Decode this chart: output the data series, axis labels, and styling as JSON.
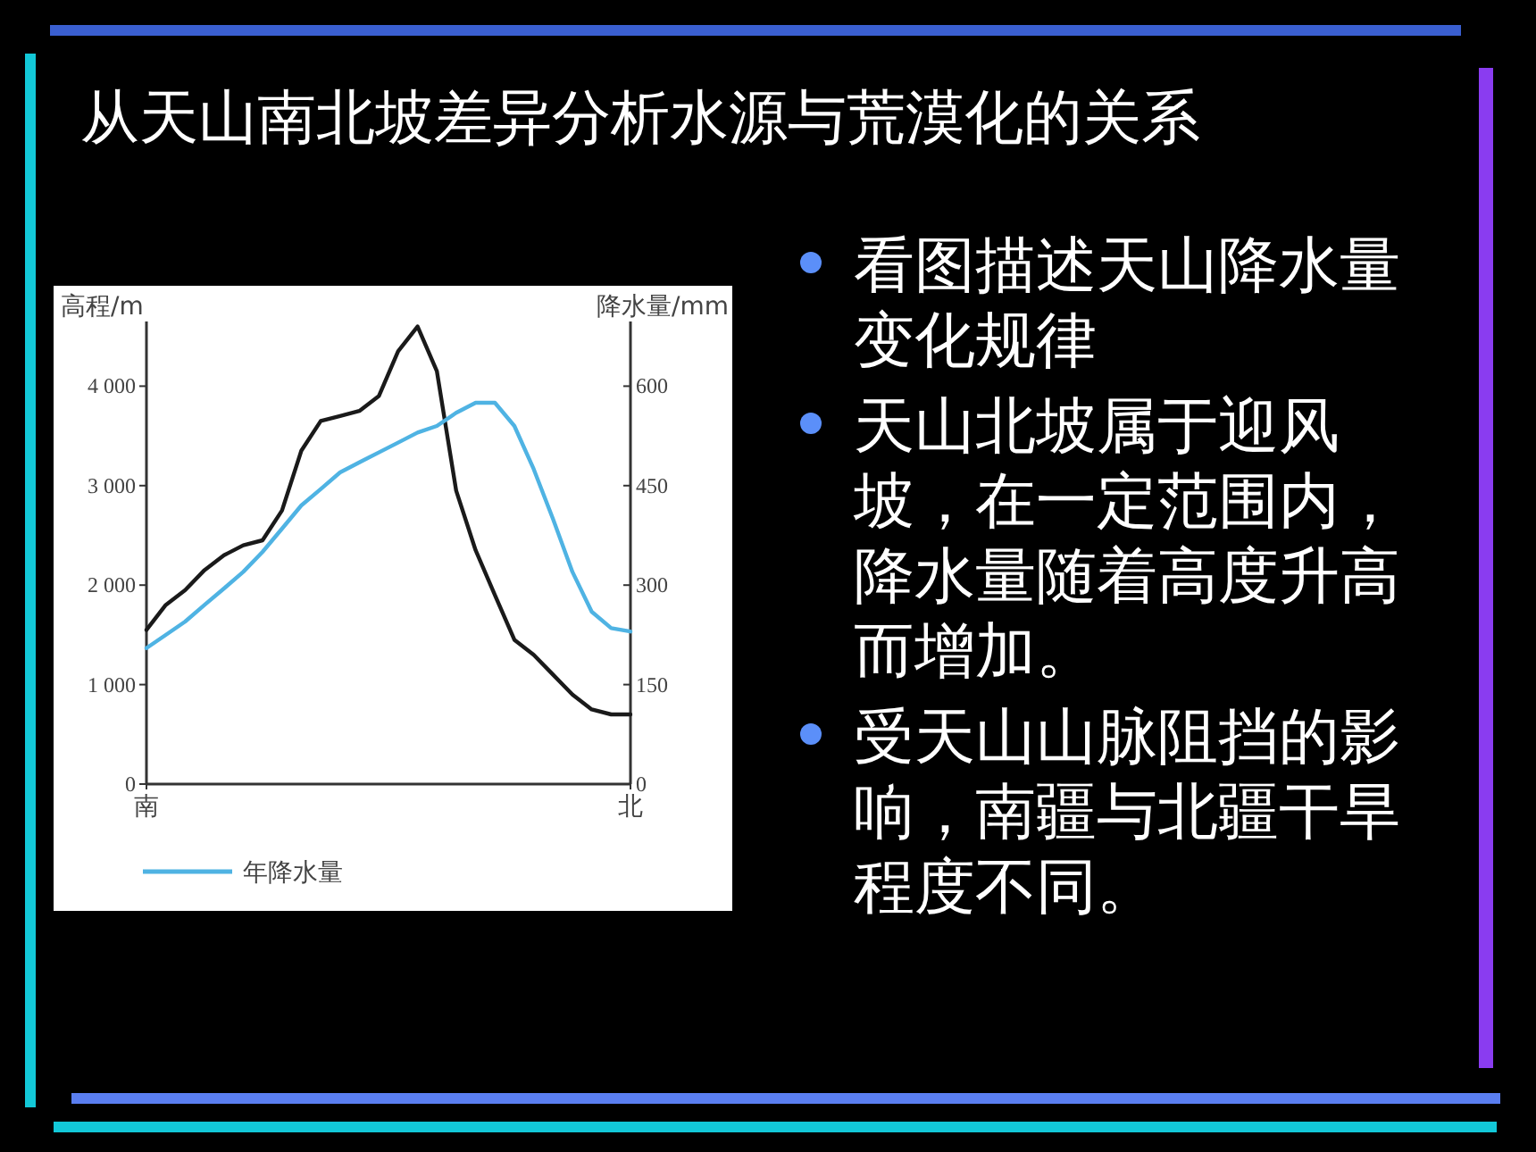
{
  "chart_data": {
    "type": "line",
    "title": "从天山南北坡差异分析水源与荒漠化的关系",
    "annotations": [
      "看图描述天山降水量变化规律",
      "天山北坡属于迎风坡，在一定范围内，降水量随着高度升高而增加。",
      "受天山山脉阻挡的影响，南疆与北疆干旱程度不同。"
    ],
    "ylabel": "高程/m",
    "y2label": "降水量/mm",
    "categories": [
      "南",
      null,
      null,
      null,
      null,
      null,
      null,
      null,
      null,
      null,
      null,
      null,
      null,
      null,
      null,
      null,
      null,
      null,
      null,
      null,
      null,
      null,
      null,
      null,
      null,
      "北"
    ],
    "ylim": [
      0,
      4650
    ],
    "yticks": [
      {
        "value": 0,
        "label": "0"
      },
      {
        "value": 1000,
        "label": "1 000"
      },
      {
        "value": 2000,
        "label": "2 000"
      },
      {
        "value": 3000,
        "label": "3 000"
      },
      {
        "value": 4000,
        "label": "4 000"
      }
    ],
    "y2lim": [
      0,
      697.5
    ],
    "y2ticks": [
      0,
      150,
      300,
      450,
      600
    ],
    "legend": "bottom",
    "series": [
      {
        "color": "#1a1a1a",
        "values": [
          1550,
          1800,
          1950,
          2150,
          2300,
          2400,
          2450,
          2750,
          3350,
          3650,
          3700,
          3750,
          3900,
          4350,
          4600,
          4150,
          2950,
          2350,
          1900,
          1450,
          1300,
          1100,
          900,
          750,
          700,
          700
        ]
      },
      {
        "name": "年降水量",
        "color": "#4fb3e3",
        "axis": "y2",
        "values": [
          205,
          225,
          245,
          270,
          295,
          320,
          350,
          385,
          420,
          445,
          470,
          485,
          500,
          515,
          530,
          540,
          560,
          575,
          575,
          540,
          475,
          400,
          320,
          260,
          235,
          230
        ]
      }
    ]
  }
}
